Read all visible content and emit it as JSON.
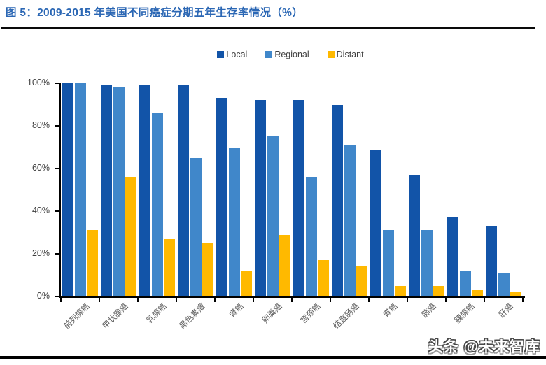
{
  "header": {
    "title": "图 5：2009-2015 年美国不同癌症分期五年生存率情况（%）"
  },
  "watermark": "头条 @未来智库",
  "chart_data": {
    "type": "bar",
    "title": "2009-2015 年美国不同癌症分期五年生存率情况（%）",
    "categories": [
      "前列腺癌",
      "甲状腺癌",
      "乳腺癌",
      "黑色素瘤",
      "肾癌",
      "卵巢癌",
      "宫颈癌",
      "结直肠癌",
      "胃癌",
      "肺癌",
      "胰腺癌",
      "肝癌"
    ],
    "series": [
      {
        "name": "Local",
        "color": "#1254A8",
        "values": [
          100,
          99,
          99,
          99,
          93,
          92,
          92,
          90,
          69,
          57,
          37,
          33
        ]
      },
      {
        "name": "Regional",
        "color": "#4087CA",
        "values": [
          100,
          98,
          86,
          65,
          70,
          75,
          56,
          71,
          31,
          31,
          12,
          11
        ]
      },
      {
        "name": "Distant",
        "color": "#FFB900",
        "values": [
          31,
          56,
          27,
          25,
          12,
          29,
          17,
          14,
          5,
          5,
          3,
          2
        ]
      }
    ],
    "xlabel": "",
    "ylabel": "",
    "ylim": [
      0,
      100
    ],
    "ytick_labels": [
      "0%",
      "20%",
      "40%",
      "60%",
      "80%",
      "100%"
    ],
    "ytick_values": [
      0,
      20,
      40,
      60,
      80,
      100
    ],
    "legend_position": "top-center",
    "grid": false,
    "bar_label_rotation_deg": 45
  }
}
